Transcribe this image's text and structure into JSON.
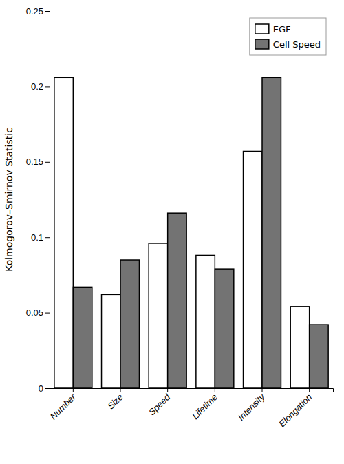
{
  "chart_data": {
    "type": "bar",
    "ylabel": "Kolmogorov–Smirnov Statistic",
    "categories": [
      "Number",
      "Size",
      "Speed",
      "Lifetime",
      "Intensity",
      "Elongation"
    ],
    "series": [
      {
        "name": "EGF",
        "color": "#ffffff",
        "values": [
          0.206,
          0.062,
          0.096,
          0.088,
          0.157,
          0.054
        ]
      },
      {
        "name": "Cell Speed",
        "color": "#737373",
        "values": [
          0.067,
          0.085,
          0.116,
          0.079,
          0.206,
          0.042
        ]
      }
    ],
    "ylim": [
      0,
      0.25
    ],
    "yticks": [
      0,
      0.05,
      0.1,
      0.15,
      0.2,
      0.25
    ],
    "legend": "upper right",
    "grid": false
  }
}
